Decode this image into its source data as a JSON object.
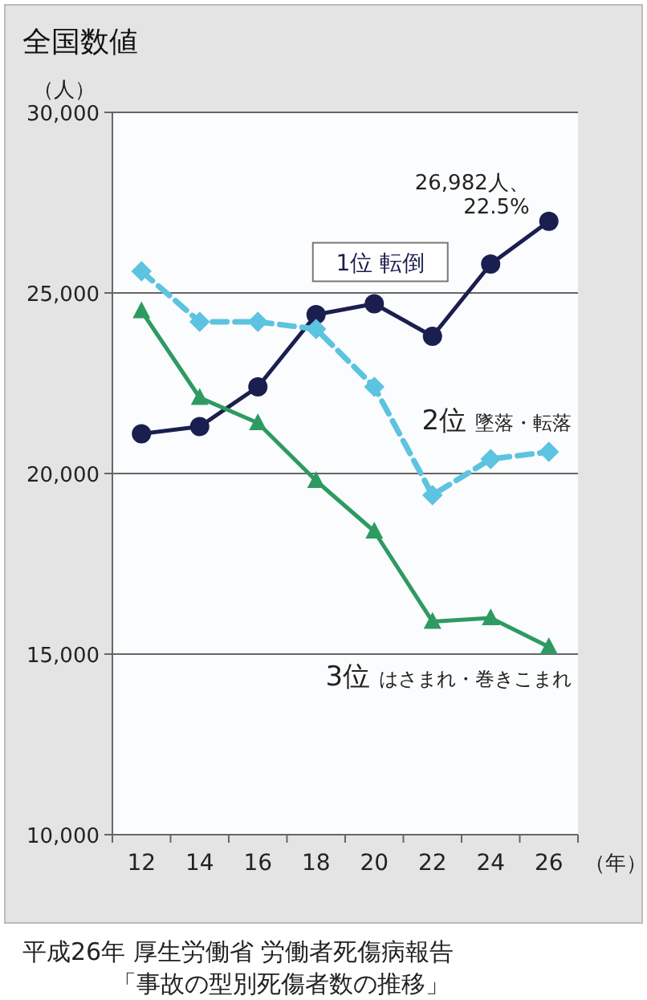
{
  "chart_data": {
    "type": "line",
    "title": "全国数値",
    "xlabel": "（年）",
    "ylabel": "（人）",
    "categories": [
      "12",
      "14",
      "16",
      "18",
      "20",
      "22",
      "24",
      "26"
    ],
    "series": [
      {
        "name": "1位 転倒",
        "color": "#1b1f4f",
        "marker": "circle",
        "line_style": "solid",
        "values": [
          21100,
          21300,
          22400,
          24400,
          24700,
          23800,
          25800,
          26982
        ]
      },
      {
        "name": "2位 墜落・転落",
        "color": "#5cc3e0",
        "marker": "diamond",
        "line_style": "dashed",
        "values": [
          25600,
          24200,
          24200,
          24000,
          22400,
          19400,
          20400,
          20600
        ]
      },
      {
        "name": "3位 はさまれ・巻きこまれ",
        "color": "#2e9a62",
        "marker": "triangle",
        "line_style": "solid",
        "values": [
          24500,
          22100,
          21400,
          19800,
          18400,
          15900,
          16000,
          15200
        ]
      }
    ],
    "ylim": [
      10000,
      30000
    ],
    "yticks": [
      {
        "value": 10000,
        "label": "10,000"
      },
      {
        "value": 15000,
        "label": "15,000"
      },
      {
        "value": 20000,
        "label": "20,000"
      },
      {
        "value": 25000,
        "label": "25,000"
      },
      {
        "value": 30000,
        "label": "30,000"
      }
    ],
    "grid": "y",
    "annotations": [
      {
        "text": "26,982人、22.5%",
        "x": "26",
        "y": 26982
      },
      "平成26年 厚生労働省 労働者死傷病報告",
      "「事故の型別死傷者数の推移」"
    ]
  }
}
